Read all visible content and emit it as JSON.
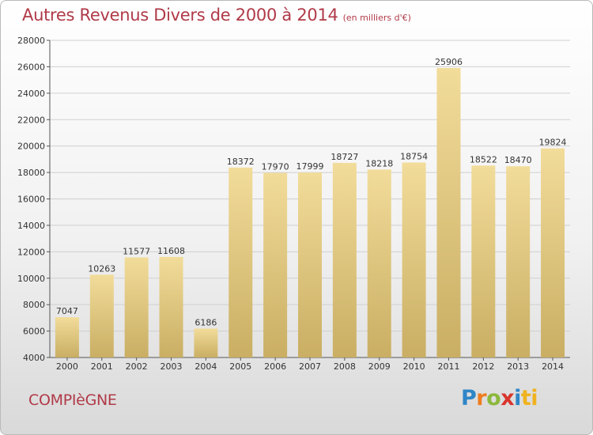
{
  "header": {
    "title": "Autres Revenus Divers de 2000 à 2014",
    "subtitle": "(en milliers d'€)"
  },
  "footer": {
    "city": "COMPIèGNE",
    "logo": [
      "P",
      "r",
      "o",
      "x",
      "i",
      "ti"
    ]
  },
  "colors": {
    "title": "#b03a48",
    "bar_light": "#f2dc9a",
    "bar_dark": "#c9ae63"
  },
  "chart_data": {
    "type": "bar",
    "title": "Autres Revenus Divers de 2000 à 2014",
    "subtitle": "(en milliers d'€)",
    "categories": [
      "2000",
      "2001",
      "2002",
      "2003",
      "2004",
      "2005",
      "2006",
      "2007",
      "2008",
      "2009",
      "2010",
      "2011",
      "2012",
      "2013",
      "2014"
    ],
    "values": [
      7047,
      10263,
      11577,
      11608,
      6186,
      18372,
      17970,
      17999,
      18727,
      18218,
      18754,
      25906,
      18522,
      18470,
      19824
    ],
    "ylim": [
      4000,
      28000
    ],
    "yticks": [
      "4000",
      "6000",
      "8000",
      "10000",
      "12000",
      "14000",
      "16000",
      "18000",
      "20000",
      "22000",
      "24000",
      "26000",
      "28000"
    ],
    "grid": true,
    "legend": "none"
  }
}
